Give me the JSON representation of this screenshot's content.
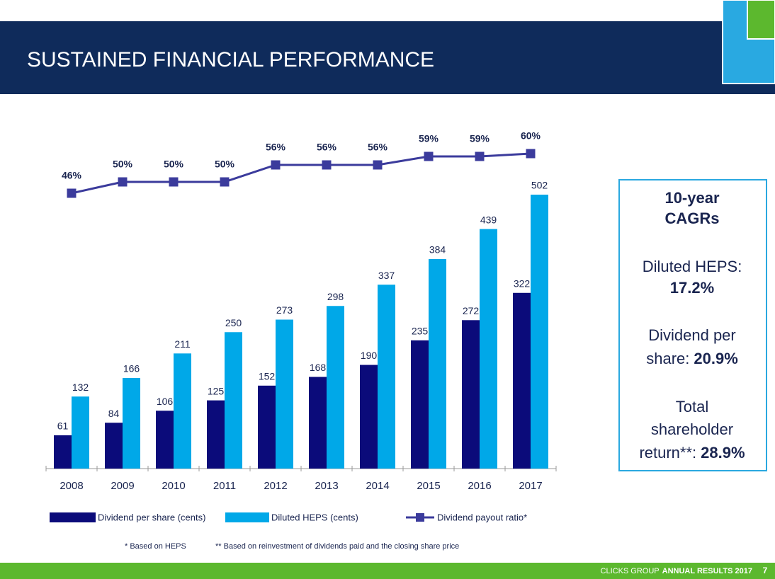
{
  "chart_data": {
    "type": "bar",
    "title": "SUSTAINED FINANCIAL PERFORMANCE",
    "categories": [
      "2008",
      "2009",
      "2010",
      "2011",
      "2012",
      "2013",
      "2014",
      "2015",
      "2016",
      "2017"
    ],
    "series": [
      {
        "name": "Dividend per share (cents)",
        "color": "#0b0b7a",
        "values": [
          61,
          84,
          106,
          125,
          152,
          168,
          190,
          235,
          272,
          322
        ]
      },
      {
        "name": "Diluted HEPS (cents)",
        "color": "#00a8e8",
        "values": [
          132,
          166,
          211,
          250,
          273,
          298,
          337,
          384,
          439,
          502
        ]
      },
      {
        "name": "Dividend payout ratio*",
        "type": "line",
        "color": "#3b3b9c",
        "values": [
          46,
          50,
          50,
          50,
          56,
          56,
          56,
          59,
          59,
          60
        ],
        "value_labels": [
          "46%",
          "50%",
          "50%",
          "50%",
          "56%",
          "56%",
          "56%",
          "59%",
          "59%",
          "60%"
        ]
      }
    ]
  },
  "sidebar": {
    "title": [
      "10-year",
      "CAGRs"
    ],
    "items": [
      {
        "label": [
          "Diluted HEPS:"
        ],
        "value": "17.2%"
      },
      {
        "label": [
          "Dividend per",
          "share:"
        ],
        "value": "20.9%"
      },
      {
        "label": [
          "Total",
          "shareholder",
          "return**:"
        ],
        "value": "28.9%"
      }
    ]
  },
  "footnotes": [
    "* Based on HEPS",
    "** Based on reinvestment of dividends paid and the closing share price"
  ],
  "footer": {
    "company": "CLICKS GROUP",
    "event": "ANNUAL RESULTS 2017",
    "page": "7"
  }
}
